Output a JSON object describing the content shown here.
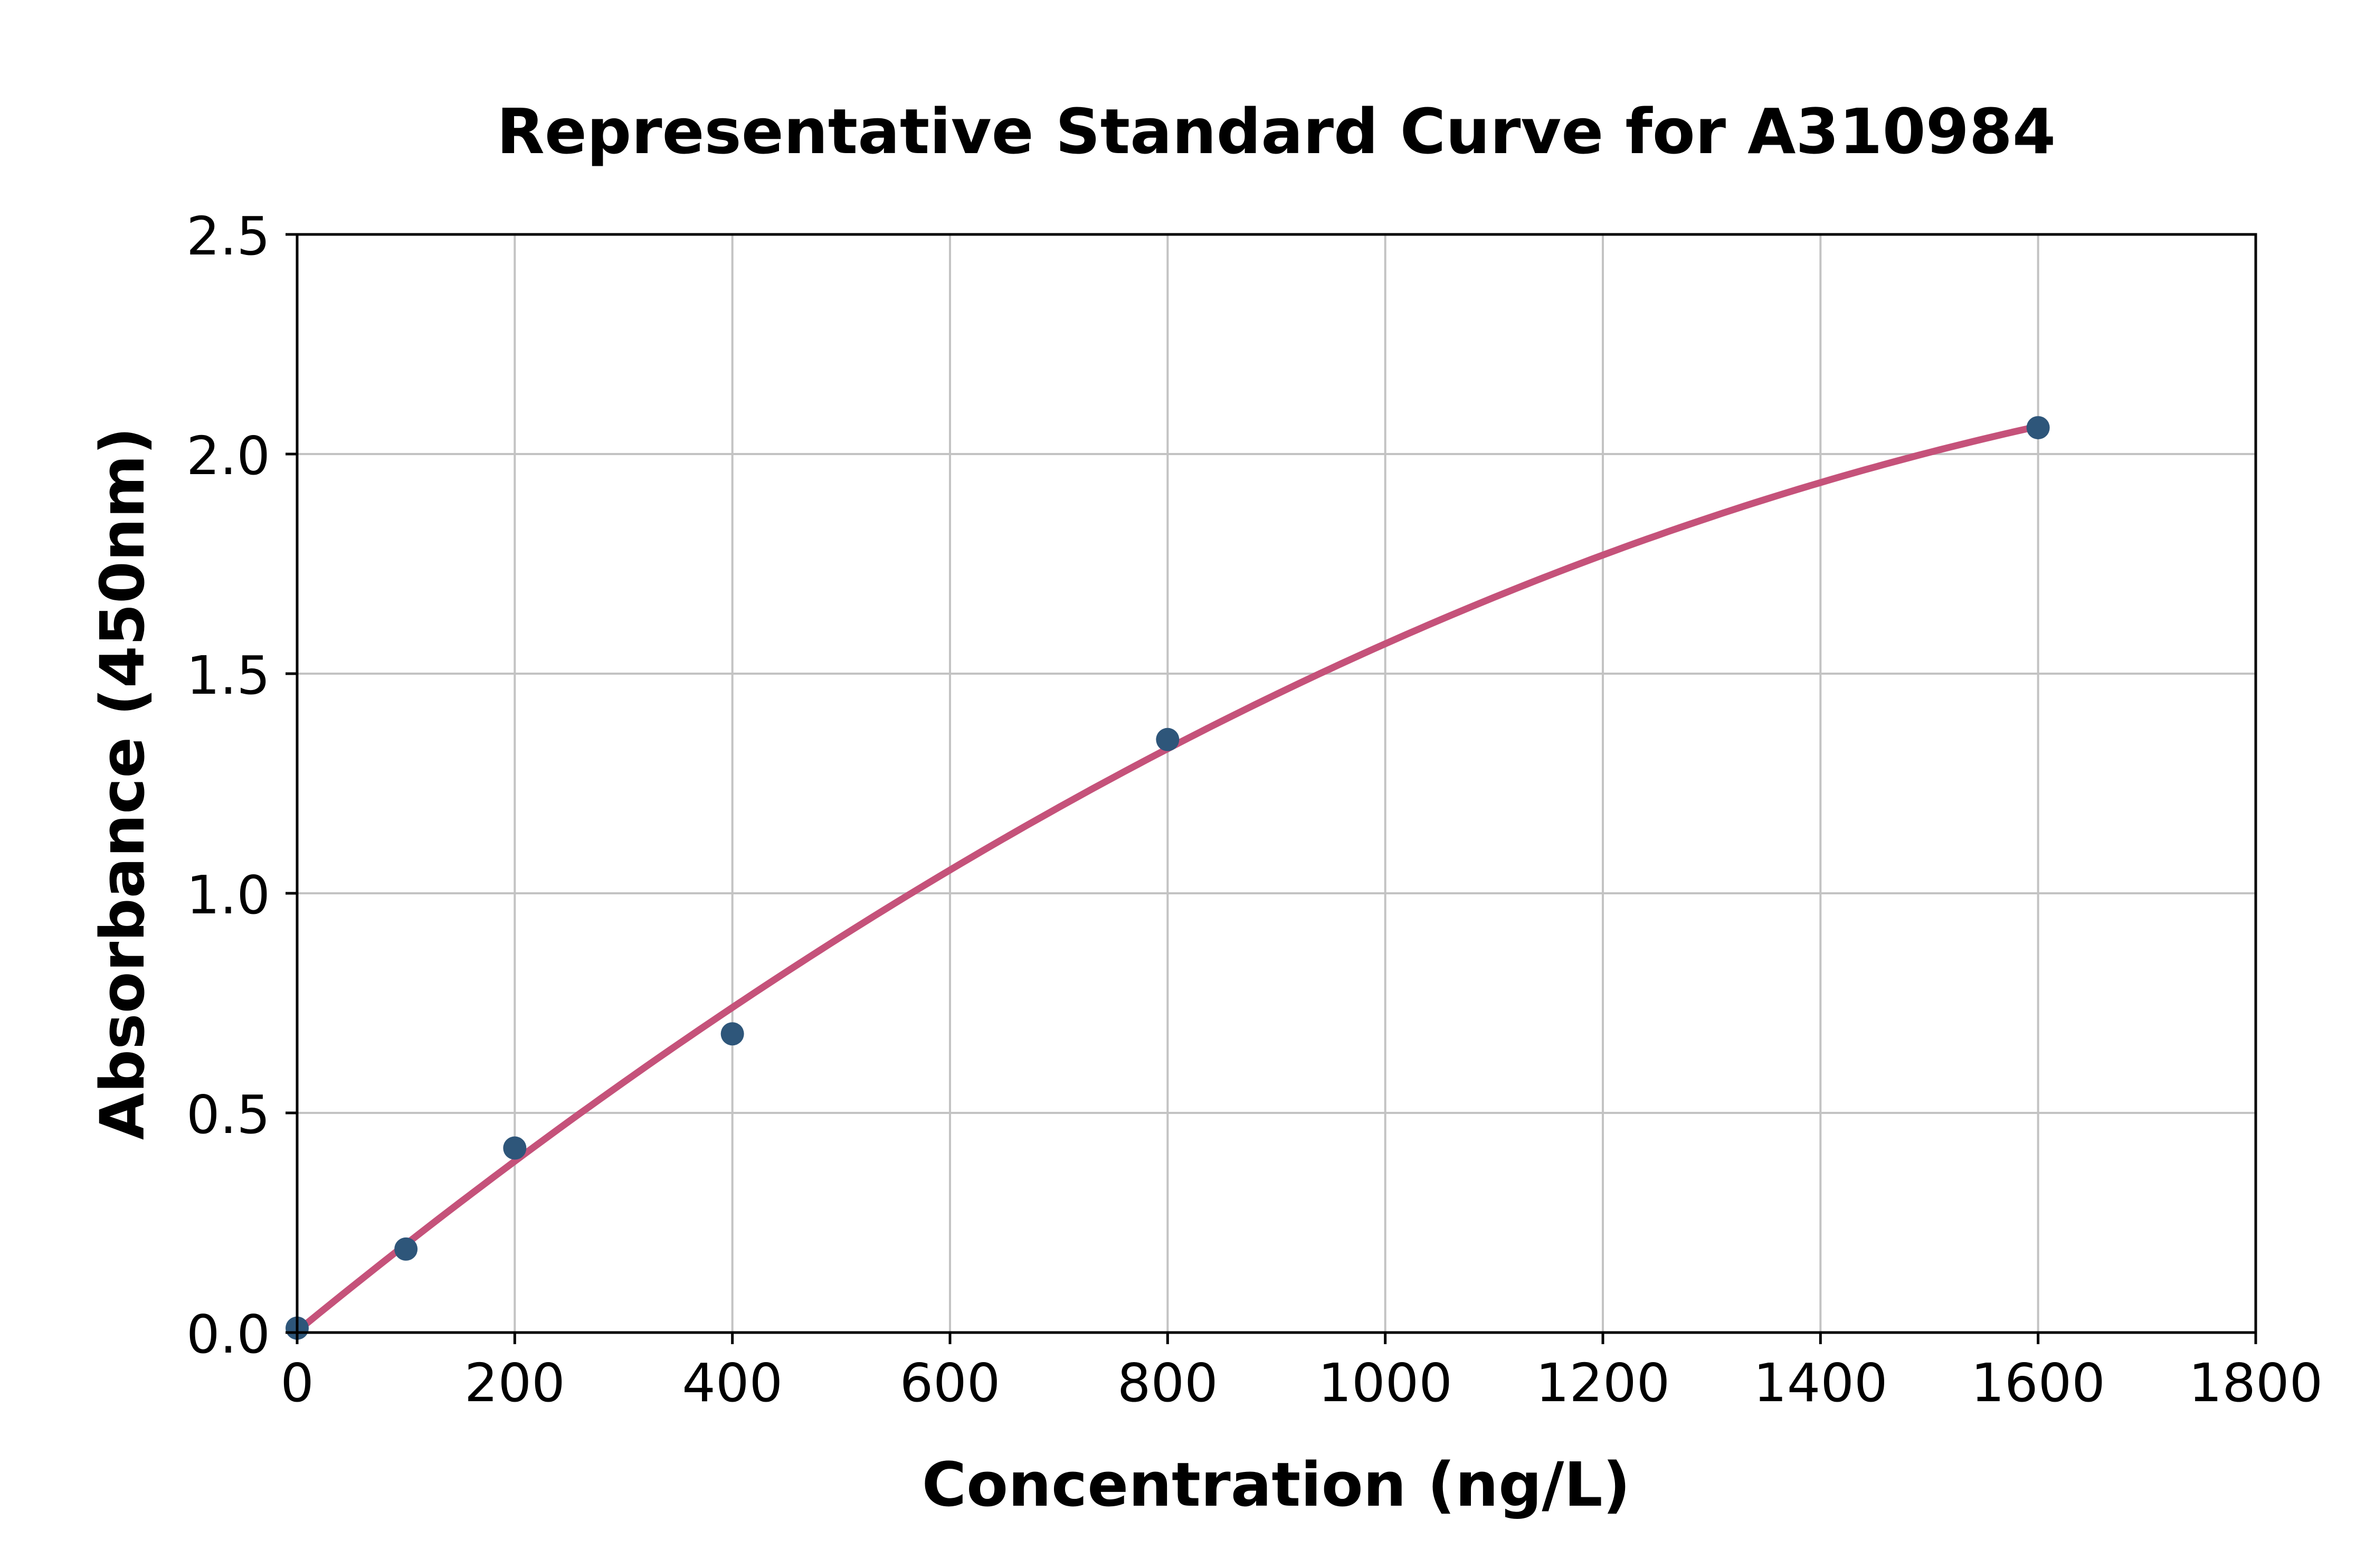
{
  "figure": {
    "background": "#FFFFFF"
  },
  "chart_data": {
    "type": "scatter",
    "title": "Representative Standard Curve for A310984",
    "xlabel": "Concentration (ng/L)",
    "ylabel": "Absorbance (450nm)",
    "xlim": [
      0,
      1800
    ],
    "ylim": [
      0,
      2.5
    ],
    "xticks": [
      0,
      200,
      400,
      600,
      800,
      1000,
      1200,
      1400,
      1600,
      1800
    ],
    "xtick_labels": [
      "0",
      "200",
      "400",
      "600",
      "800",
      "1000",
      "1200",
      "1400",
      "1600",
      "1800"
    ],
    "yticks": [
      0,
      0.5,
      1.0,
      1.5,
      2.0,
      2.5
    ],
    "ytick_labels": [
      "0.0",
      "0.5",
      "1.0",
      "1.5",
      "2.0",
      "2.5"
    ],
    "grid": true,
    "legend": false,
    "points": [
      {
        "x": 0,
        "y": 0.01
      },
      {
        "x": 100,
        "y": 0.19
      },
      {
        "x": 200,
        "y": 0.42
      },
      {
        "x": 400,
        "y": 0.68
      },
      {
        "x": 800,
        "y": 1.35
      },
      {
        "x": 1600,
        "y": 2.06
      }
    ],
    "fit_curve": {
      "kind": "quadratic",
      "c0": 0.003,
      "c1": 0.0020275,
      "c2": -4.625e-07,
      "x_start": 0,
      "x_end": 1600
    },
    "colors": {
      "points": "#2E567A",
      "curve": "#C5527A",
      "grid": "#C3C3C3",
      "axes": "#000000",
      "background": "#FFFFFF"
    }
  }
}
